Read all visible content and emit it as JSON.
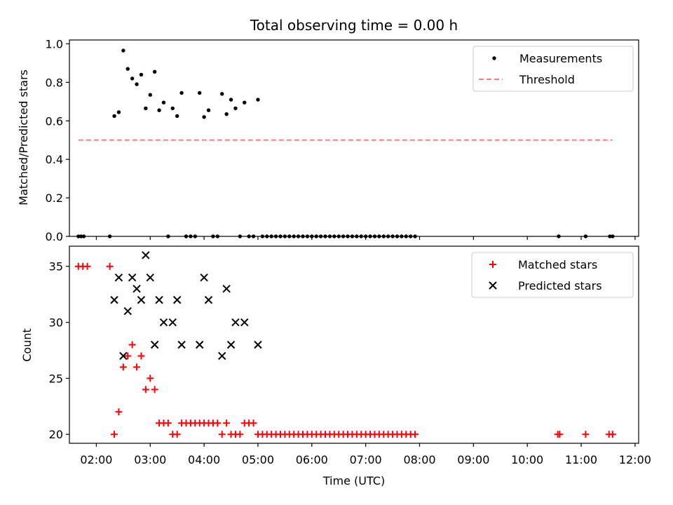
{
  "figure": {
    "title": "Total observing time = 0.00 h",
    "xlabel": "Time (UTC)",
    "xticks": [
      "02:00",
      "03:00",
      "04:00",
      "05:00",
      "06:00",
      "07:00",
      "08:00",
      "09:00",
      "10:00",
      "11:00",
      "12:00"
    ],
    "xlim": [
      "01:30",
      "12:04"
    ]
  },
  "chart_data": [
    {
      "type": "scatter",
      "ylabel": "Matched/Predicted stars",
      "ylim": [
        0,
        1.02
      ],
      "yticks": [
        "0.0",
        "0.2",
        "0.4",
        "0.6",
        "0.8",
        "1.0"
      ],
      "legend_placement": "top-right",
      "legend": [
        {
          "label": "Measurements",
          "marker": "dot",
          "color": "#000000"
        },
        {
          "label": "Threshold",
          "marker": "dashed-line",
          "color": "#ff7f7f"
        }
      ],
      "threshold": {
        "value": 0.5,
        "x_start": "01:40",
        "x_end": "11:35"
      },
      "series": [
        {
          "name": "Measurements",
          "color": "#000000",
          "points": [
            [
              "01:40",
              0
            ],
            [
              "01:43",
              0
            ],
            [
              "01:46",
              0
            ],
            [
              "02:15",
              0
            ],
            [
              "02:20",
              0.625
            ],
            [
              "02:25",
              0.645
            ],
            [
              "02:30",
              0.965
            ],
            [
              "02:35",
              0.87
            ],
            [
              "02:40",
              0.82
            ],
            [
              "02:45",
              0.79
            ],
            [
              "02:50",
              0.84
            ],
            [
              "02:55",
              0.665
            ],
            [
              "03:00",
              0.735
            ],
            [
              "03:05",
              0.855
            ],
            [
              "03:10",
              0.655
            ],
            [
              "03:15",
              0.695
            ],
            [
              "03:25",
              0.665
            ],
            [
              "03:30",
              0.625
            ],
            [
              "03:35",
              0.745
            ],
            [
              "03:55",
              0.745
            ],
            [
              "04:00",
              0.62
            ],
            [
              "04:05",
              0.655
            ],
            [
              "04:20",
              0.74
            ],
            [
              "04:25",
              0.635
            ],
            [
              "04:30",
              0.71
            ],
            [
              "04:35",
              0.665
            ],
            [
              "04:45",
              0.695
            ],
            [
              "05:00",
              0.71
            ],
            [
              "03:20",
              0
            ],
            [
              "03:40",
              0
            ],
            [
              "03:45",
              0
            ],
            [
              "03:50",
              0
            ],
            [
              "04:10",
              0
            ],
            [
              "04:15",
              0
            ],
            [
              "04:40",
              0
            ],
            [
              "04:50",
              0
            ],
            [
              "04:55",
              0
            ],
            [
              "05:05",
              0
            ],
            [
              "05:10",
              0
            ],
            [
              "05:15",
              0
            ],
            [
              "05:20",
              0
            ],
            [
              "05:25",
              0
            ],
            [
              "05:30",
              0
            ],
            [
              "05:35",
              0
            ],
            [
              "05:40",
              0
            ],
            [
              "05:45",
              0
            ],
            [
              "05:50",
              0
            ],
            [
              "05:55",
              0
            ],
            [
              "06:00",
              0
            ],
            [
              "06:05",
              0
            ],
            [
              "06:10",
              0
            ],
            [
              "06:15",
              0
            ],
            [
              "06:20",
              0
            ],
            [
              "06:25",
              0
            ],
            [
              "06:30",
              0
            ],
            [
              "06:35",
              0
            ],
            [
              "06:40",
              0
            ],
            [
              "06:45",
              0
            ],
            [
              "06:50",
              0
            ],
            [
              "06:55",
              0
            ],
            [
              "07:00",
              0
            ],
            [
              "07:05",
              0
            ],
            [
              "07:10",
              0
            ],
            [
              "07:15",
              0
            ],
            [
              "07:20",
              0
            ],
            [
              "07:25",
              0
            ],
            [
              "07:30",
              0
            ],
            [
              "07:35",
              0
            ],
            [
              "07:40",
              0
            ],
            [
              "07:45",
              0
            ],
            [
              "07:50",
              0
            ],
            [
              "07:55",
              0
            ],
            [
              "10:35",
              0
            ],
            [
              "11:05",
              0
            ],
            [
              "11:32",
              0
            ],
            [
              "11:35",
              0
            ]
          ]
        }
      ]
    },
    {
      "type": "scatter",
      "ylabel": "Count",
      "ylim": [
        19.2,
        36.8
      ],
      "yticks": [
        "20",
        "25",
        "30",
        "35"
      ],
      "legend_placement": "top-right",
      "legend": [
        {
          "label": "Matched stars",
          "marker": "plus",
          "color": "#ff0000"
        },
        {
          "label": "Predicted stars",
          "marker": "x",
          "color": "#000000"
        }
      ],
      "series": [
        {
          "name": "Matched stars",
          "color": "#ff0000",
          "points": [
            [
              "01:40",
              35
            ],
            [
              "01:45",
              35
            ],
            [
              "01:50",
              35
            ],
            [
              "02:15",
              35
            ],
            [
              "02:20",
              20
            ],
            [
              "02:25",
              22
            ],
            [
              "02:30",
              26
            ],
            [
              "02:35",
              27
            ],
            [
              "02:40",
              28
            ],
            [
              "02:45",
              26
            ],
            [
              "02:50",
              27
            ],
            [
              "02:55",
              24
            ],
            [
              "03:00",
              25
            ],
            [
              "03:05",
              24
            ],
            [
              "03:10",
              21
            ],
            [
              "03:15",
              21
            ],
            [
              "03:20",
              21
            ],
            [
              "03:25",
              20
            ],
            [
              "03:30",
              20
            ],
            [
              "03:35",
              21
            ],
            [
              "03:40",
              21
            ],
            [
              "03:45",
              21
            ],
            [
              "03:50",
              21
            ],
            [
              "03:55",
              21
            ],
            [
              "04:00",
              21
            ],
            [
              "04:05",
              21
            ],
            [
              "04:10",
              21
            ],
            [
              "04:15",
              21
            ],
            [
              "04:20",
              20
            ],
            [
              "04:25",
              21
            ],
            [
              "04:30",
              20
            ],
            [
              "04:35",
              20
            ],
            [
              "04:40",
              20
            ],
            [
              "04:45",
              21
            ],
            [
              "04:50",
              21
            ],
            [
              "04:55",
              21
            ],
            [
              "05:00",
              20
            ],
            [
              "05:05",
              20
            ],
            [
              "05:10",
              20
            ],
            [
              "05:15",
              20
            ],
            [
              "05:20",
              20
            ],
            [
              "05:25",
              20
            ],
            [
              "05:30",
              20
            ],
            [
              "05:35",
              20
            ],
            [
              "05:40",
              20
            ],
            [
              "05:45",
              20
            ],
            [
              "05:50",
              20
            ],
            [
              "05:55",
              20
            ],
            [
              "06:00",
              20
            ],
            [
              "06:05",
              20
            ],
            [
              "06:10",
              20
            ],
            [
              "06:15",
              20
            ],
            [
              "06:20",
              20
            ],
            [
              "06:25",
              20
            ],
            [
              "06:30",
              20
            ],
            [
              "06:35",
              20
            ],
            [
              "06:40",
              20
            ],
            [
              "06:45",
              20
            ],
            [
              "06:50",
              20
            ],
            [
              "06:55",
              20
            ],
            [
              "07:00",
              20
            ],
            [
              "07:05",
              20
            ],
            [
              "07:10",
              20
            ],
            [
              "07:15",
              20
            ],
            [
              "07:20",
              20
            ],
            [
              "07:25",
              20
            ],
            [
              "07:30",
              20
            ],
            [
              "07:35",
              20
            ],
            [
              "07:40",
              20
            ],
            [
              "07:45",
              20
            ],
            [
              "07:50",
              20
            ],
            [
              "07:55",
              20
            ],
            [
              "10:34",
              20
            ],
            [
              "10:36",
              20
            ],
            [
              "11:05",
              20
            ],
            [
              "11:31",
              20
            ],
            [
              "11:35",
              20
            ]
          ]
        },
        {
          "name": "Predicted stars",
          "color": "#000000",
          "points": [
            [
              "02:20",
              32
            ],
            [
              "02:25",
              34
            ],
            [
              "02:30",
              27
            ],
            [
              "02:35",
              31
            ],
            [
              "02:40",
              34
            ],
            [
              "02:45",
              33
            ],
            [
              "02:50",
              32
            ],
            [
              "02:55",
              36
            ],
            [
              "03:00",
              34
            ],
            [
              "03:05",
              28
            ],
            [
              "03:10",
              32
            ],
            [
              "03:15",
              30
            ],
            [
              "03:25",
              30
            ],
            [
              "03:30",
              32
            ],
            [
              "03:35",
              28
            ],
            [
              "03:55",
              28
            ],
            [
              "04:00",
              34
            ],
            [
              "04:05",
              32
            ],
            [
              "04:20",
              27
            ],
            [
              "04:25",
              33
            ],
            [
              "04:30",
              28
            ],
            [
              "04:35",
              30
            ],
            [
              "04:45",
              30
            ],
            [
              "05:00",
              28
            ]
          ]
        }
      ]
    }
  ]
}
